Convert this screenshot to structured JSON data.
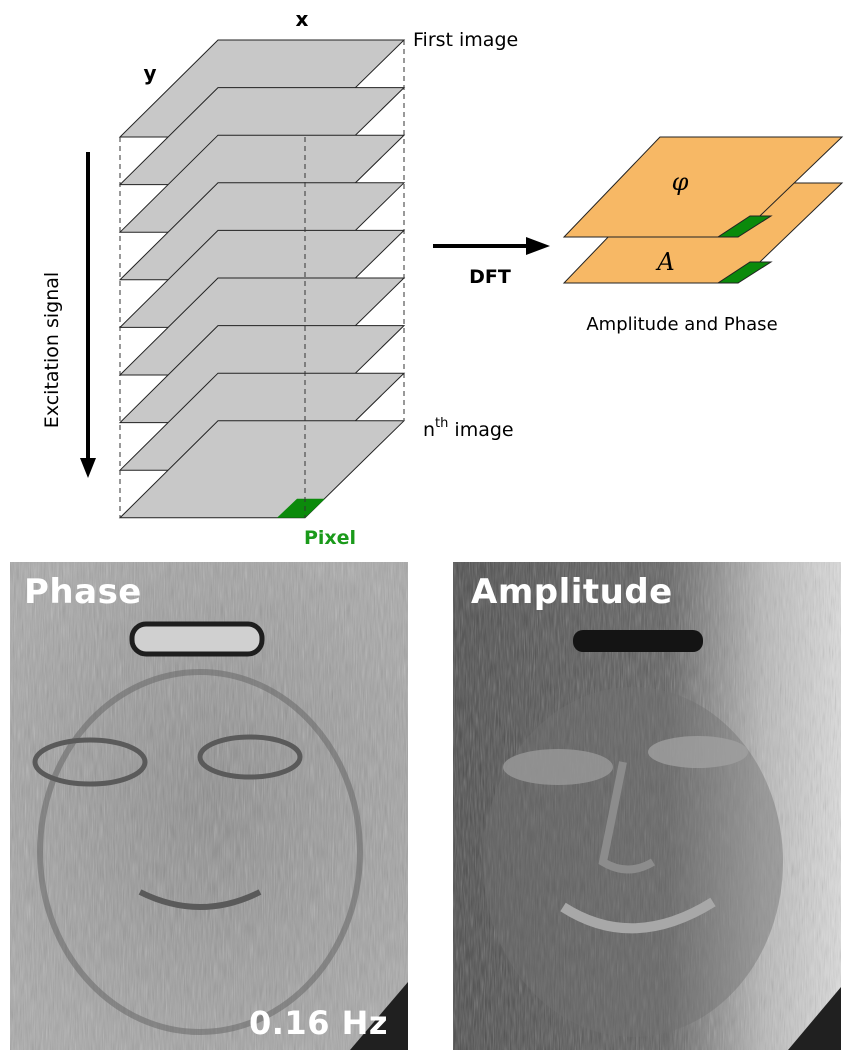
{
  "diagram": {
    "axis_x": "x",
    "axis_y": "y",
    "first_image": "First image",
    "nth_prefix": "n",
    "nth_superscript": "th",
    "nth_suffix": " image",
    "excitation_label": "Excitation signal",
    "pixel_label": "Pixel",
    "dft_label": "DFT",
    "phase_symbol": "φ",
    "amplitude_symbol": "A",
    "result_caption": "Amplitude and Phase",
    "stack_layer_count": 9,
    "colors": {
      "layer_fill": "#c8c8c8",
      "pixel": "#0b8a0b",
      "result_fill": "#f7b865",
      "pixel_label": "#1a9a1a"
    }
  },
  "images": {
    "phase_label": "Phase",
    "amplitude_label": "Amplitude",
    "frequency_label": "0.16 Hz"
  }
}
